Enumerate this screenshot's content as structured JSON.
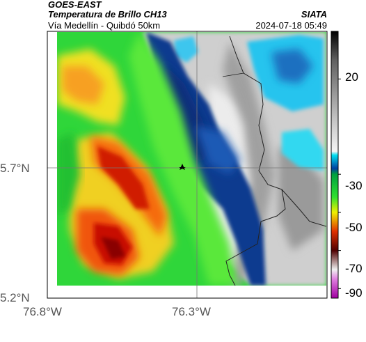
{
  "header": {
    "satellite": "GOES-EAST",
    "product": "Temperatura de Brillo CH13",
    "subtitle": "Vía Medellín - Quibdó 50km",
    "institution": "SIATA",
    "timestamp": "2024-07-18 05:49"
  },
  "map": {
    "lat_labels": [
      "5.7°N",
      "5.2°N"
    ],
    "lon_labels": [
      "76.8°W",
      "76.3°W"
    ],
    "marker": "location-marker"
  },
  "colorbar": {
    "tick_labels": [
      "20",
      "-30",
      "-50",
      "-70",
      "-90"
    ],
    "tick_values": [
      20,
      -30,
      -50,
      -70,
      -90
    ],
    "range": [
      -95,
      45
    ],
    "stops": [
      {
        "v": 45,
        "c": "#000000"
      },
      {
        "v": 30,
        "c": "#606060"
      },
      {
        "v": 0,
        "c": "#c0c0c0"
      },
      {
        "v": -18,
        "c": "#f4f4f4"
      },
      {
        "v": -20,
        "c": "#00e0f0"
      },
      {
        "v": -27,
        "c": "#0040a0"
      },
      {
        "v": -30,
        "c": "#00a040"
      },
      {
        "v": -42,
        "c": "#30e030"
      },
      {
        "v": -50,
        "c": "#f0f000"
      },
      {
        "v": -60,
        "c": "#e03000"
      },
      {
        "v": -70,
        "c": "#500000"
      },
      {
        "v": -80,
        "c": "#f0f0f0"
      },
      {
        "v": -85,
        "c": "#e080e0"
      },
      {
        "v": -95,
        "c": "#a000a0"
      }
    ]
  }
}
